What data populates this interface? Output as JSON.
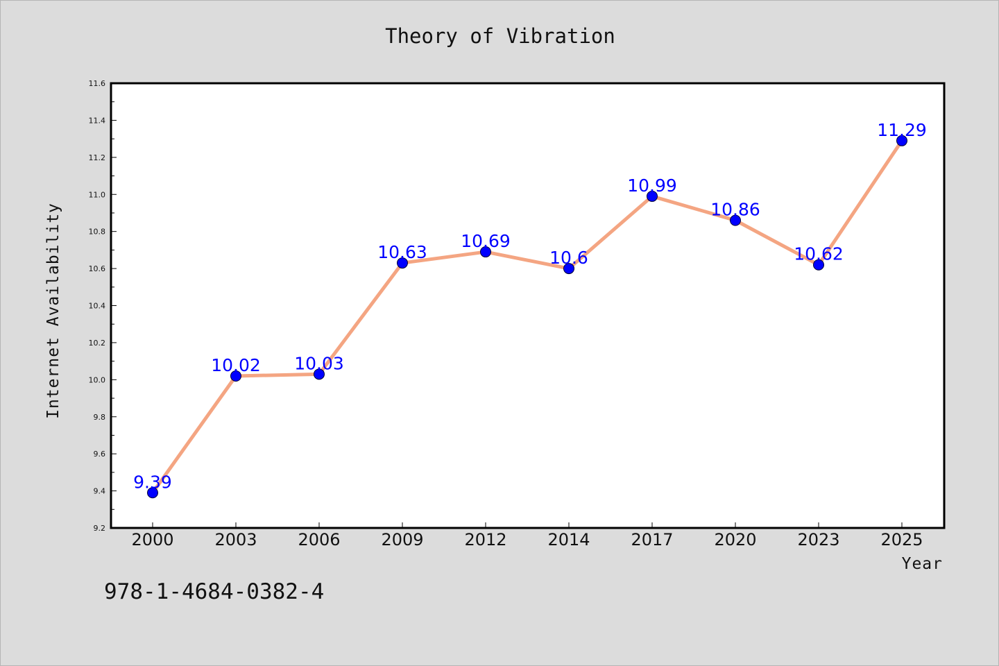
{
  "page": {
    "isbn": "978-1-4684-0382-4"
  },
  "chart_data": {
    "type": "line",
    "title": "Theory of Vibration",
    "xlabel": "Year",
    "ylabel": "Internet Availability",
    "categories": [
      "2000",
      "2003",
      "2006",
      "2009",
      "2012",
      "2014",
      "2017",
      "2020",
      "2023",
      "2025"
    ],
    "values": [
      9.39,
      10.02,
      10.03,
      10.63,
      10.69,
      10.6,
      10.99,
      10.86,
      10.62,
      11.29
    ],
    "data_labels": [
      "9.39",
      "10.02",
      "10.03",
      "10.63",
      "10.69",
      "10.6",
      "10.99",
      "10.86",
      "10.62",
      "11.29"
    ],
    "ylim": [
      9.2,
      11.6
    ],
    "y_ticks": [
      "9.2",
      "9.4",
      "9.6",
      "9.8",
      "10.0",
      "10.2",
      "10.4",
      "10.6",
      "10.8",
      "11.0",
      "11.2",
      "11.4",
      "11.6"
    ],
    "grid": false,
    "legend": "none",
    "colors": {
      "line": "#f4a582",
      "marker": "#0000ff",
      "label": "#0000ff",
      "background": "#dcdcdc",
      "plot_background": "#ffffff"
    }
  }
}
